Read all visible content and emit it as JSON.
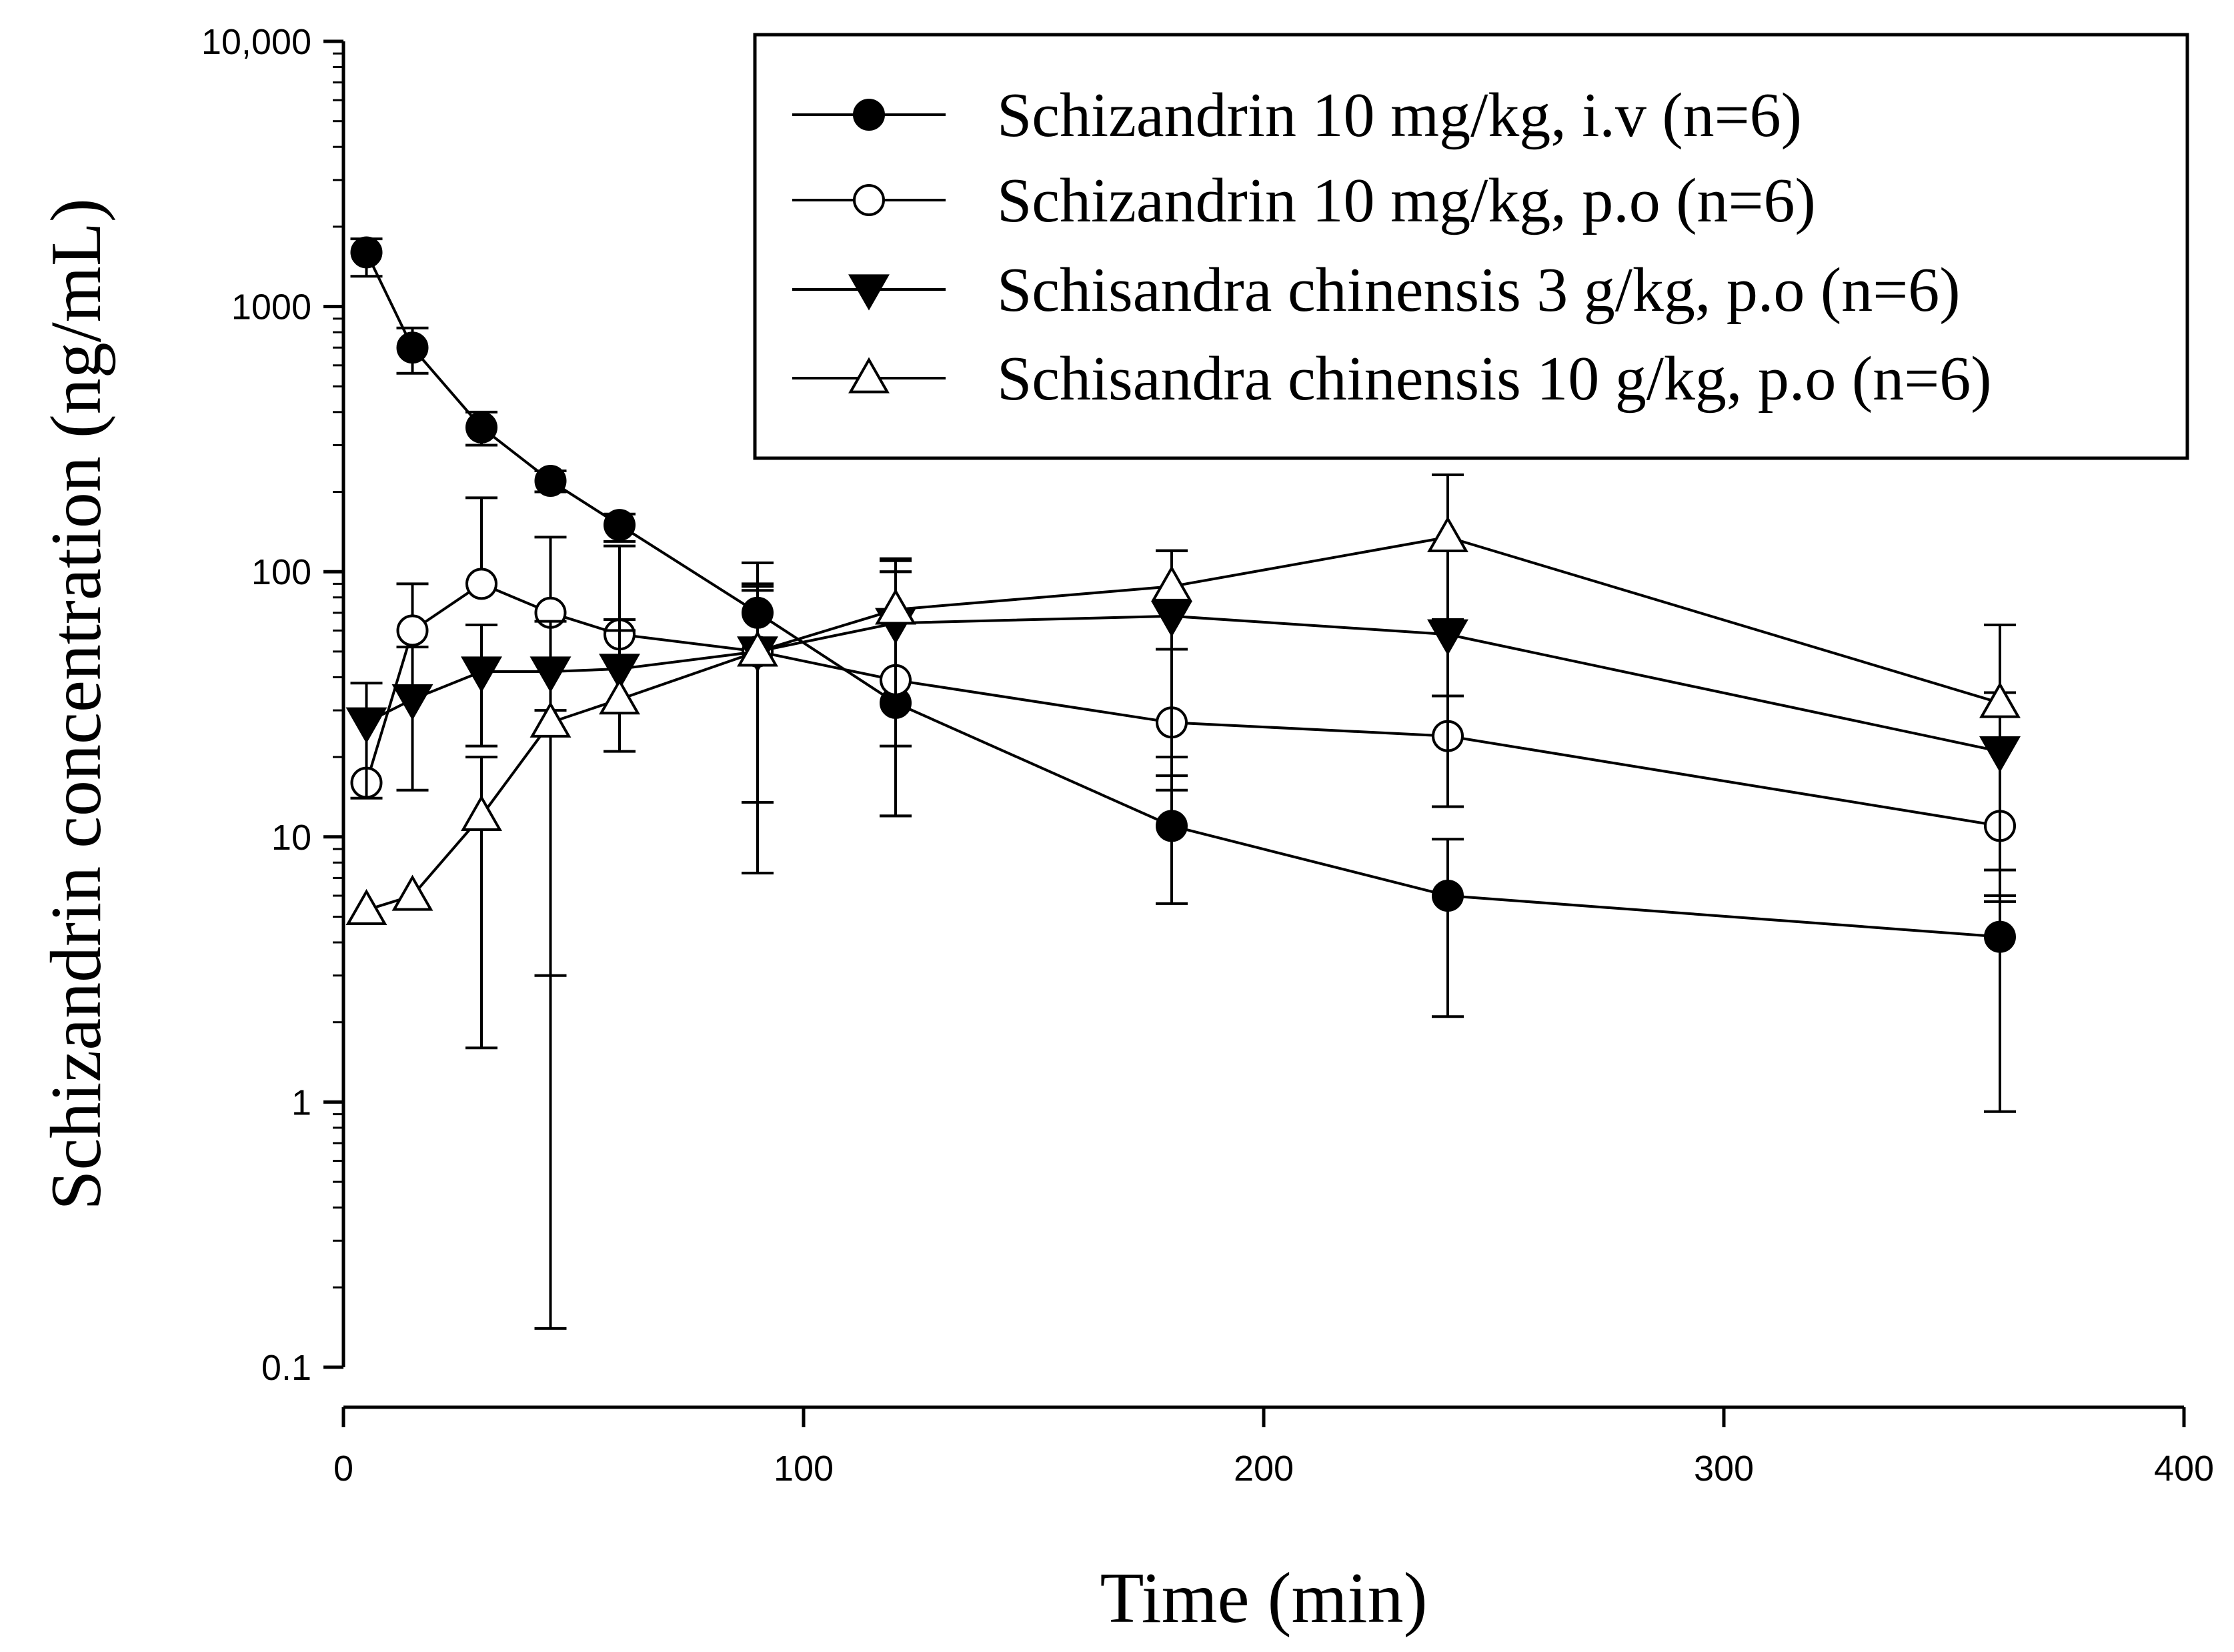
{
  "chart_data": {
    "type": "line",
    "title": "",
    "xlabel": "Time (min)",
    "ylabel": "Schizandrin concentration (ng/mL)",
    "xlim": [
      0,
      400
    ],
    "ylim": [
      0.1,
      10000
    ],
    "yscale": "log",
    "grid": false,
    "legend_position": "top-right",
    "xticks": [
      {
        "value": 0,
        "label": "0"
      },
      {
        "value": 100,
        "label": "100"
      },
      {
        "value": 200,
        "label": "200"
      },
      {
        "value": 300,
        "label": "300"
      },
      {
        "value": 400,
        "label": "400"
      }
    ],
    "yticks": [
      {
        "value": 0.1,
        "label": "0.1"
      },
      {
        "value": 1,
        "label": "1"
      },
      {
        "value": 10,
        "label": "10"
      },
      {
        "value": 100,
        "label": "100"
      },
      {
        "value": 1000,
        "label": "1000"
      },
      {
        "value": 10000,
        "label": "10,000"
      }
    ],
    "series": [
      {
        "name": "Schizandrin 10 mg/kg, i.v (n=6)",
        "marker": "circle",
        "filled": true,
        "x": [
          5,
          15,
          30,
          45,
          60,
          90,
          120,
          180,
          240,
          360
        ],
        "y": [
          1600,
          700,
          350,
          220,
          150,
          70,
          32,
          11,
          6,
          4.2
        ],
        "err_low": [
          1300,
          560,
          300,
          200,
          130,
          null,
          12,
          5.6,
          2.1,
          0.92
        ],
        "err_high": [
          1800,
          830,
          400,
          240,
          165,
          90,
          100,
          20,
          9.8,
          7.5
        ]
      },
      {
        "name": "Schizandrin 10 mg/kg, p.o (n=6)",
        "marker": "circle",
        "filled": false,
        "x": [
          5,
          15,
          30,
          45,
          60,
          90,
          120,
          180,
          240,
          360
        ],
        "y": [
          16,
          60,
          90,
          70,
          58,
          50,
          39,
          27,
          24,
          11
        ],
        "err_low": [
          null,
          null,
          null,
          null,
          null,
          null,
          22,
          15,
          13,
          6
        ],
        "err_high": [
          null,
          90,
          190,
          135,
          125,
          85,
          100,
          120,
          65,
          35
        ]
      },
      {
        "name": "Schisandra chinensis 3 g/kg, p.o (n=6)",
        "marker": "triangle-down",
        "filled": true,
        "x": [
          5,
          15,
          30,
          45,
          60,
          90,
          120,
          180,
          240,
          360
        ],
        "y": [
          27,
          33,
          42,
          42,
          43,
          50,
          64,
          68,
          58,
          21
        ],
        "err_low": [
          14,
          15,
          22,
          3,
          21,
          13.5,
          null,
          17,
          13,
          5.7
        ],
        "err_high": [
          38,
          52,
          63,
          65,
          66,
          88,
          110,
          120,
          66,
          35
        ]
      },
      {
        "name": "Schisandra chinensis 10 g/kg, p.o (n=6)",
        "marker": "triangle-up",
        "filled": false,
        "x": [
          5,
          15,
          30,
          45,
          60,
          90,
          120,
          180,
          240,
          360
        ],
        "y": [
          5.3,
          6,
          12,
          27,
          33,
          50,
          72,
          88,
          135,
          32
        ],
        "err_low": [
          null,
          null,
          1.6,
          0.14,
          30,
          7.3,
          12,
          51,
          34,
          7.5
        ],
        "err_high": [
          null,
          null,
          20,
          30,
          60,
          108,
          112,
          120,
          232,
          63
        ]
      }
    ]
  }
}
